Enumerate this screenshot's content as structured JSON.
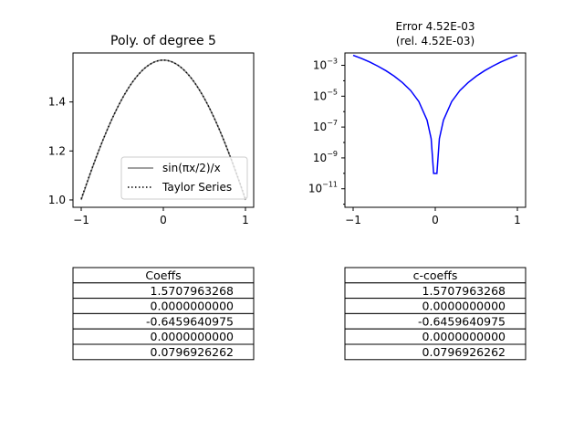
{
  "chart_data": [
    {
      "type": "line",
      "title": "Poly. of degree 5",
      "xlim": [
        -1.1,
        1.1
      ],
      "ylim": [
        0.97,
        1.6
      ],
      "xticks": [
        -1,
        0,
        1
      ],
      "xtick_labels": [
        "−1",
        "0",
        "1"
      ],
      "yticks": [
        1.0,
        1.2,
        1.4
      ],
      "ytick_labels": [
        "1.0",
        "1.2",
        "1.4"
      ],
      "grid": false,
      "legend_position": "lower-right",
      "series": [
        {
          "name": "sin(πx/2)/x",
          "style": "solid",
          "color": "#808080"
        },
        {
          "name": "Taylor Series",
          "style": "dotted",
          "color": "#000000"
        }
      ],
      "coefficients": [
        1.5707963268,
        0.0,
        -0.6459640975,
        0.0,
        0.0796926262
      ]
    },
    {
      "type": "line",
      "title_line1": "Error 4.52E-03",
      "title_line2": "(rel. 4.52E-03)",
      "y_scale": "log",
      "xlim": [
        -1.1,
        1.1
      ],
      "ylim_exp": [
        -12.2,
        -2.2
      ],
      "xticks": [
        -1,
        0,
        1
      ],
      "xtick_labels": [
        "−1",
        "0",
        "1"
      ],
      "yticks_exp": [
        -3,
        -5,
        -7,
        -9,
        -11
      ],
      "ytick_mantissa": "10",
      "ytick_exponents": [
        "−3",
        "−5",
        "−7",
        "−9",
        "−11"
      ],
      "grid": false,
      "series": [
        {
          "name": "",
          "color": "#0000ff",
          "x": [
            -1,
            -0.9,
            -0.8,
            -0.7,
            -0.6,
            -0.5,
            -0.4,
            -0.3,
            -0.2,
            -0.1,
            -0.05,
            -0.02,
            0.02,
            0.05,
            0.1,
            0.2,
            0.3,
            0.4,
            0.5,
            0.6,
            0.7,
            0.8,
            0.9,
            1
          ],
          "y_exp": [
            -2.35,
            -2.55,
            -2.78,
            -3.05,
            -3.35,
            -3.7,
            -4.12,
            -4.63,
            -5.35,
            -6.55,
            -7.75,
            -10.0,
            -10.0,
            -7.75,
            -6.55,
            -5.35,
            -4.63,
            -4.12,
            -3.7,
            -3.35,
            -3.05,
            -2.78,
            -2.55,
            -2.35
          ]
        }
      ]
    },
    {
      "type": "table",
      "header": "Coeffs",
      "rows": [
        "1.5707963268",
        "0.0000000000",
        "-0.6459640975",
        "0.0000000000",
        "0.0796926262"
      ]
    },
    {
      "type": "table",
      "header": "c-coeffs",
      "rows": [
        "1.5707963268",
        "0.0000000000",
        "-0.6459640975",
        "0.0000000000",
        "0.0796926262"
      ]
    }
  ]
}
